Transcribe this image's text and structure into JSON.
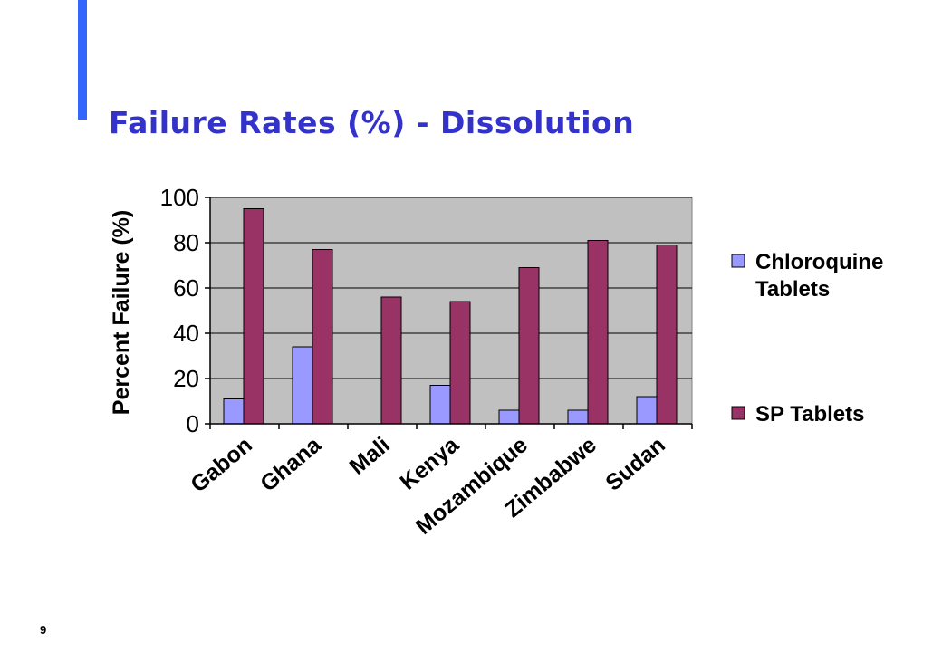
{
  "slide": {
    "title": "Failure Rates (%) - Dissolution",
    "page_number": "9"
  },
  "colors": {
    "title": "#3333cc",
    "accent_bar": "#3366ff",
    "plot_background": "#c0c0c0",
    "chloroquine": "#9999ff",
    "sp": "#993366"
  },
  "chart_data": {
    "type": "bar",
    "title": "",
    "xlabel": "",
    "ylabel": "Percent Failure (%)",
    "ylim": [
      0,
      100
    ],
    "yticks": [
      0,
      20,
      40,
      60,
      80,
      100
    ],
    "categories": [
      "Gabon",
      "Ghana",
      "Mali",
      "Kenya",
      "Mozambique",
      "Zimbabwe",
      "Sudan"
    ],
    "series": [
      {
        "name": "Chloroquine Tablets",
        "values": [
          11,
          34,
          0,
          17,
          6,
          6,
          12
        ]
      },
      {
        "name": "SP Tablets",
        "values": [
          95,
          77,
          56,
          54,
          69,
          81,
          79
        ]
      }
    ],
    "grid": "horizontal",
    "legend_position": "right"
  }
}
